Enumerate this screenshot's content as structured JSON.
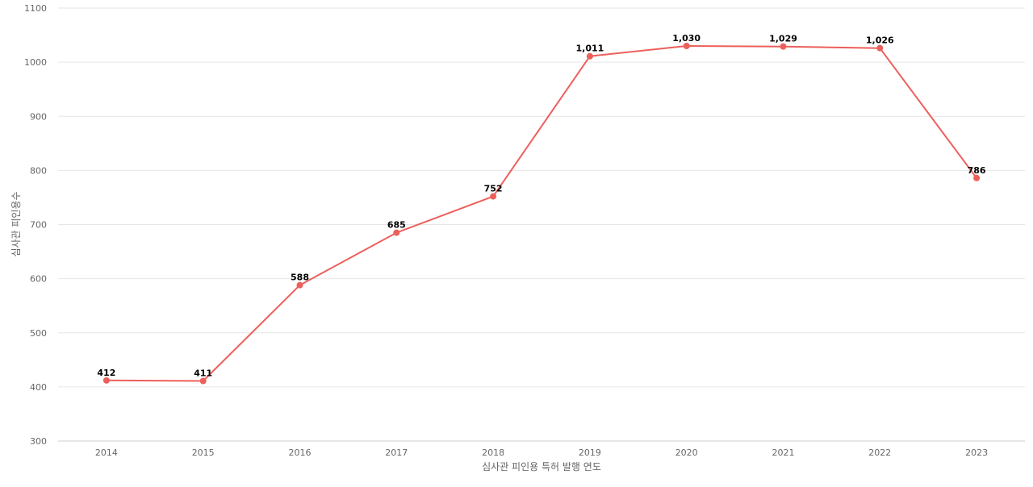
{
  "chart_data": {
    "type": "line",
    "categories": [
      "2014",
      "2015",
      "2016",
      "2017",
      "2018",
      "2019",
      "2020",
      "2021",
      "2022",
      "2023"
    ],
    "values": [
      412,
      411,
      588,
      685,
      752,
      1011,
      1030,
      1029,
      1026,
      786
    ],
    "data_labels": [
      "412",
      "411",
      "588",
      "685",
      "752",
      "1,011",
      "1,030",
      "1,029",
      "1,026",
      "786"
    ],
    "title": "",
    "xlabel": "심사관 피인용 특허 발행 연도",
    "ylabel": "심사관 피인용수",
    "ylim": [
      300,
      1100
    ],
    "yticks": [
      300,
      400,
      500,
      600,
      700,
      800,
      900,
      1000,
      1100
    ],
    "ytick_labels": [
      "300",
      "400",
      "500",
      "600",
      "700",
      "800",
      "900",
      "1000",
      "1100"
    ],
    "grid": true,
    "line_color": "#ed5f5b",
    "legend": "none"
  }
}
